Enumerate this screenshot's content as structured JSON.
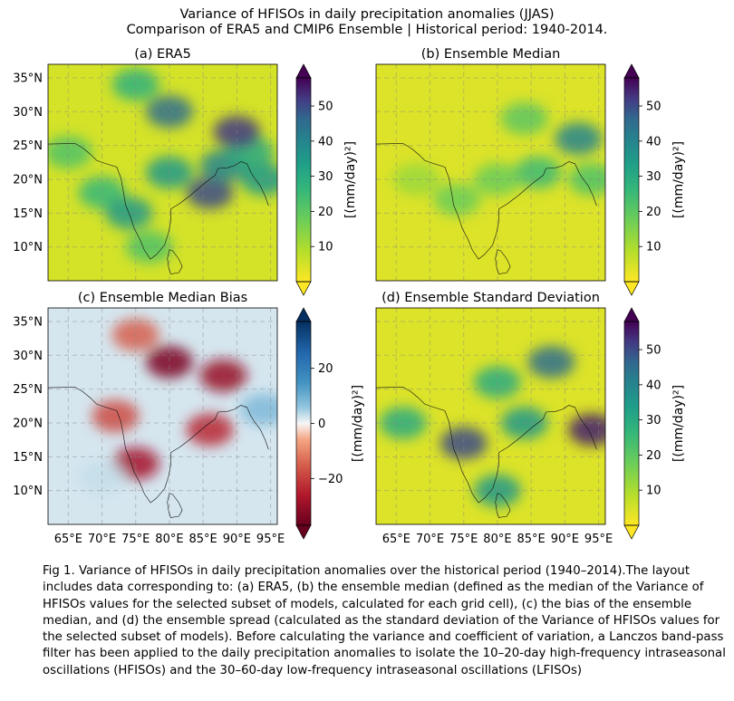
{
  "suptitle": {
    "line1": "Variance of HFISOs in daily precipitation anomalies (JJAS)",
    "line2": "Comparison of ERA5 and CMIP6 Ensemble | Historical period: 1940-2014."
  },
  "caption": "Fig 1. Variance of HFISOs in daily precipitation anomalies over the historical period (1940–2014).The layout includes data corresponding to: (a) ERA5, (b) the ensemble median (defined as the median of the Variance of HFISOs values for the selected subset of models, calculated for each grid cell), (c) the bias of the ensemble median, and (d) the ensemble spread (calculated as the standard deviation of the Variance of HFISOs values for the selected subset of models). Before calculating the variance and coefficient of variation, a Lanczos band-pass filter has been applied to the daily precipitation anomalies to isolate the 10–20-day high-frequency intraseasonal oscillations (HFISOs) and the 30–60-day low-frequency intraseasonal oscillations (LFISOs)",
  "chart_data": [
    {
      "type": "heatmap",
      "title": "(a) ERA5",
      "colormap": "viridis_r",
      "colorbar": {
        "label": "[(mm/day)²]",
        "ticks": [
          10,
          20,
          30,
          40,
          50
        ],
        "ticklabels": [
          "10",
          "20",
          "30",
          "40",
          "50"
        ],
        "range": [
          0,
          58
        ],
        "extend": "both"
      },
      "y_ticks": [
        "10°N",
        "15°N",
        "20°N",
        "25°N",
        "30°N",
        "35°N"
      ],
      "x_ticks": [],
      "extent": {
        "lon": [
          62,
          96
        ],
        "lat": [
          5,
          37
        ]
      },
      "grid": true,
      "field": [
        {
          "lon": 65,
          "lat": 24,
          "value": 22
        },
        {
          "lon": 70,
          "lat": 18,
          "value": 26
        },
        {
          "lon": 74,
          "lat": 15,
          "value": 35
        },
        {
          "lon": 80,
          "lat": 21,
          "value": 35
        },
        {
          "lon": 86,
          "lat": 18,
          "value": 50
        },
        {
          "lon": 88,
          "lat": 22,
          "value": 40
        },
        {
          "lon": 92,
          "lat": 24,
          "value": 30
        },
        {
          "lon": 90,
          "lat": 27,
          "value": 52
        },
        {
          "lon": 80,
          "lat": 30,
          "value": 45
        },
        {
          "lon": 75,
          "lat": 34,
          "value": 28
        },
        {
          "lon": 77,
          "lat": 10,
          "value": 22
        },
        {
          "lon": 94,
          "lat": 20,
          "value": 35
        }
      ]
    },
    {
      "type": "heatmap",
      "title": "(b) Ensemble Median",
      "colormap": "viridis_r",
      "colorbar": {
        "label": "[(mm/day)²]",
        "ticks": [
          10,
          20,
          30,
          40,
          50
        ],
        "ticklabels": [
          "10",
          "20",
          "30",
          "40",
          "50"
        ],
        "range": [
          0,
          58
        ],
        "extend": "both"
      },
      "y_ticks": [],
      "x_ticks": [],
      "extent": {
        "lon": [
          62,
          96
        ],
        "lat": [
          5,
          37
        ]
      },
      "grid": true,
      "field": [
        {
          "lon": 92,
          "lat": 26,
          "value": 40
        },
        {
          "lon": 86,
          "lat": 21,
          "value": 25
        },
        {
          "lon": 80,
          "lat": 20,
          "value": 18
        },
        {
          "lon": 74,
          "lat": 17,
          "value": 18
        },
        {
          "lon": 84,
          "lat": 29,
          "value": 20
        },
        {
          "lon": 94,
          "lat": 20,
          "value": 22
        },
        {
          "lon": 68,
          "lat": 20,
          "value": 12
        }
      ]
    },
    {
      "type": "heatmap",
      "title": "(c) Ensemble Median Bias",
      "colormap": "RdBu",
      "colorbar": {
        "label": "[(mm/day)²]",
        "ticks": [
          20,
          0,
          -20
        ],
        "ticklabels": [
          "20",
          "0",
          "−20"
        ],
        "range": [
          -37,
          37
        ],
        "extend": "both"
      },
      "y_ticks": [
        "10°N",
        "15°N",
        "20°N",
        "25°N",
        "30°N",
        "35°N"
      ],
      "x_ticks": [
        "65°E",
        "70°E",
        "75°E",
        "80°E",
        "85°E",
        "90°E",
        "95°E"
      ],
      "extent": {
        "lon": [
          62,
          96
        ],
        "lat": [
          5,
          37
        ]
      },
      "grid": true,
      "field": [
        {
          "lon": 80,
          "lat": 29,
          "value": -34
        },
        {
          "lon": 88,
          "lat": 27,
          "value": -30
        },
        {
          "lon": 86,
          "lat": 19,
          "value": -24
        },
        {
          "lon": 72,
          "lat": 21,
          "value": -18
        },
        {
          "lon": 75,
          "lat": 14,
          "value": -28
        },
        {
          "lon": 75,
          "lat": 33,
          "value": -15
        },
        {
          "lon": 94,
          "lat": 22,
          "value": 8
        },
        {
          "lon": 70,
          "lat": 12,
          "value": 3
        }
      ]
    },
    {
      "type": "heatmap",
      "title": "(d) Ensemble Standard Deviation",
      "colormap": "viridis_r",
      "colorbar": {
        "label": "[(mm/day)²]",
        "ticks": [
          10,
          20,
          30,
          40,
          50
        ],
        "ticklabels": [
          "10",
          "20",
          "30",
          "40",
          "50"
        ],
        "range": [
          0,
          58
        ],
        "extend": "both"
      },
      "y_ticks": [],
      "x_ticks": [
        "65°E",
        "70°E",
        "75°E",
        "80°E",
        "85°E",
        "90°E",
        "95°E"
      ],
      "extent": {
        "lon": [
          62,
          96
        ],
        "lat": [
          5,
          37
        ]
      },
      "grid": true,
      "field": [
        {
          "lon": 75,
          "lat": 17,
          "value": 50
        },
        {
          "lon": 94,
          "lat": 19,
          "value": 55
        },
        {
          "lon": 88,
          "lat": 29,
          "value": 45
        },
        {
          "lon": 84,
          "lat": 20,
          "value": 35
        },
        {
          "lon": 80,
          "lat": 10,
          "value": 35
        },
        {
          "lon": 66,
          "lat": 20,
          "value": 30
        },
        {
          "lon": 80,
          "lat": 26,
          "value": 30
        }
      ]
    }
  ]
}
